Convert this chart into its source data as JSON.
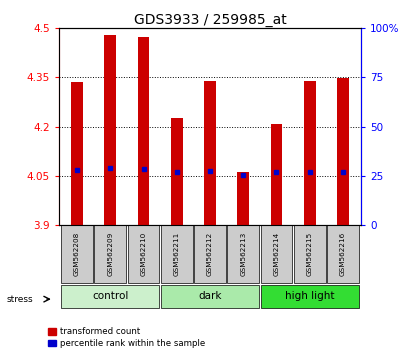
{
  "title": "GDS3933 / 259985_at",
  "samples": [
    "GSM562208",
    "GSM562209",
    "GSM562210",
    "GSM562211",
    "GSM562212",
    "GSM562213",
    "GSM562214",
    "GSM562215",
    "GSM562216"
  ],
  "bar_tops": [
    4.335,
    4.48,
    4.475,
    4.225,
    4.34,
    4.062,
    4.208,
    4.34,
    4.347
  ],
  "bar_base": 3.9,
  "percentile_values": [
    4.068,
    4.072,
    4.07,
    4.062,
    4.065,
    4.052,
    4.062,
    4.062,
    4.062
  ],
  "ylim": [
    3.9,
    4.5
  ],
  "yticks": [
    3.9,
    4.05,
    4.2,
    4.35,
    4.5
  ],
  "ytick_labels": [
    "3.9",
    "4.05",
    "4.2",
    "4.35",
    "4.5"
  ],
  "right_yticks": [
    0,
    25,
    50,
    75,
    100
  ],
  "right_ytick_labels": [
    "0",
    "25",
    "50",
    "75",
    "100%"
  ],
  "groups": [
    {
      "name": "control",
      "indices": [
        0,
        1,
        2
      ],
      "color": "#ccf0cc"
    },
    {
      "name": "dark",
      "indices": [
        3,
        4,
        5
      ],
      "color": "#aaeaaa"
    },
    {
      "name": "high light",
      "indices": [
        6,
        7,
        8
      ],
      "color": "#33dd33"
    }
  ],
  "bar_color": "#cc0000",
  "blue_color": "#0000cc",
  "tick_label_bg": "#cccccc",
  "stress_arrow_label": "stress",
  "legend_items": [
    {
      "color": "#cc0000",
      "label": "transformed count"
    },
    {
      "color": "#0000cc",
      "label": "percentile rank within the sample"
    }
  ],
  "bar_width": 0.35
}
